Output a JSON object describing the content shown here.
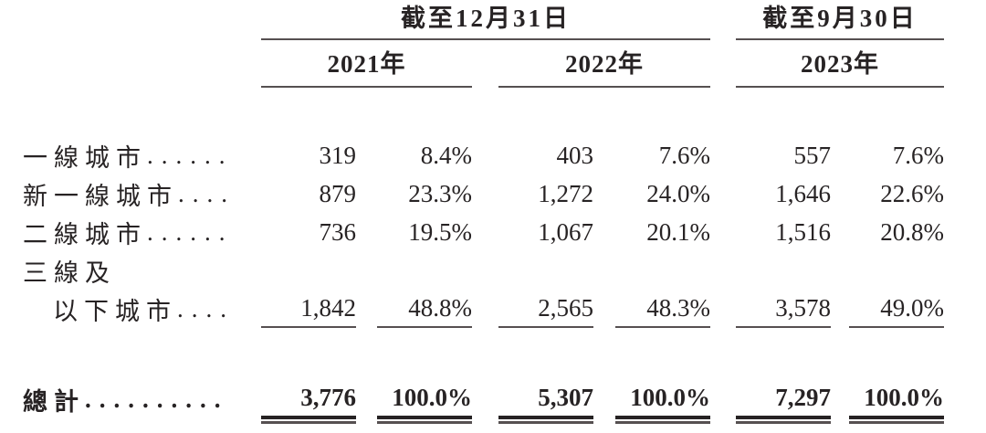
{
  "table": {
    "header": {
      "period_dec31": "截至12月31日",
      "period_sep30": "截至9月30日",
      "year_2021": "2021年",
      "year_2022": "2022年",
      "year_2023": "2023年"
    },
    "rows": [
      {
        "label": "一線城市",
        "leader": ".......",
        "cells": [
          "319",
          "8.4%",
          "403",
          "7.6%",
          "557",
          "7.6%"
        ]
      },
      {
        "label": "新一線城市",
        "leader": ".....",
        "cells": [
          "879",
          "23.3%",
          "1,272",
          "24.0%",
          "1,646",
          "22.6%"
        ]
      },
      {
        "label": "二線城市",
        "leader": ".......",
        "cells": [
          "736",
          "19.5%",
          "1,067",
          "20.1%",
          "1,516",
          "20.8%"
        ]
      },
      {
        "label_line1": "三線及",
        "label_line2": "以下城市",
        "leader": ".....",
        "cells": [
          "1,842",
          "48.8%",
          "2,565",
          "48.3%",
          "3,578",
          "49.0%"
        ]
      },
      {
        "label": "總計",
        "leader": "..........",
        "cells": [
          "3,776",
          "100.0%",
          "5,307",
          "100.0%",
          "7,297",
          "100.0%"
        ]
      }
    ]
  }
}
